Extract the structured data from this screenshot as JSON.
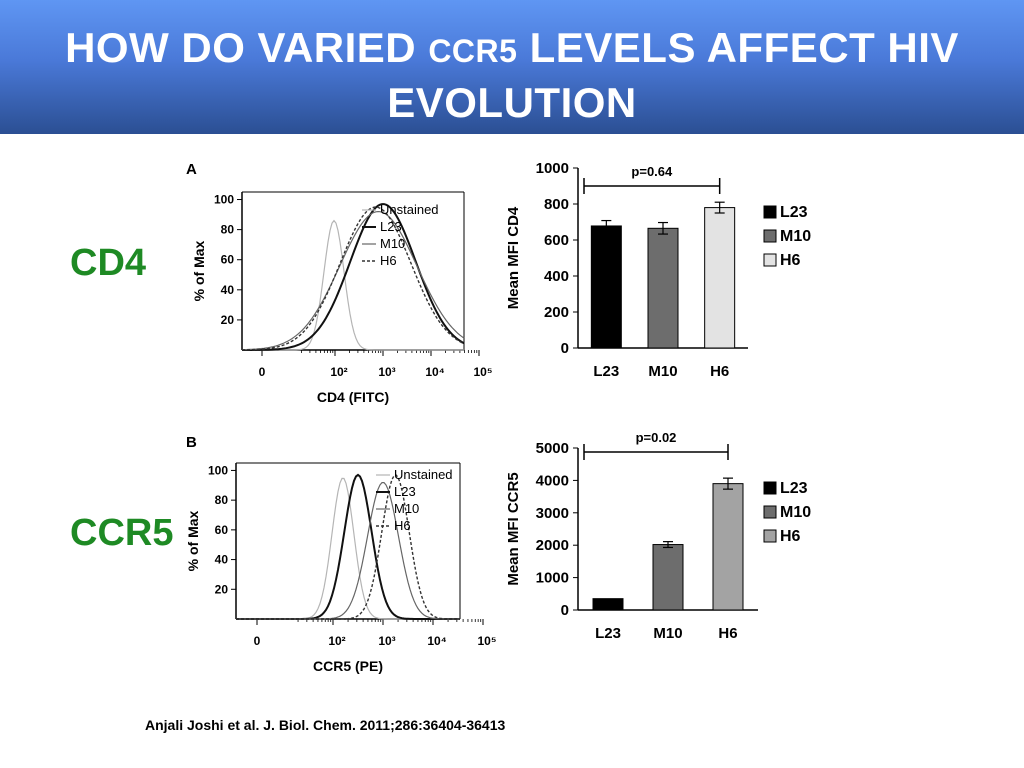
{
  "slide": {
    "title_a": "HOW DO VARIED ",
    "title_b": "CCR5",
    "title_c": " LEVELS AFFECT HIV",
    "title_d": "EVOLUTION",
    "label_cd4": "CD4",
    "label_ccr5": "CCR5",
    "citation": "Anjali Joshi et al. J. Biol. Chem. 2011;286:36404-36413",
    "title_color": "#ffffff",
    "side_label_color": "#1e8a24"
  },
  "chart_data": [
    {
      "type": "line",
      "panel": "A",
      "xlabel": "CD4 (FITC)",
      "ylabel": "% of Max",
      "x_ticks": [
        "0",
        "10²",
        "10³",
        "10⁴",
        "10⁵"
      ],
      "y_ticks": [
        20,
        40,
        60,
        80,
        100
      ],
      "ylim": [
        0,
        105
      ],
      "legend": [
        "Unstained",
        "L23",
        "M10",
        "H6"
      ],
      "legend_position": "top-right",
      "series": [
        {
          "name": "Unstained",
          "peak_x": 91,
          "peak_y": 86,
          "width": 22
        },
        {
          "name": "L23",
          "peak_x": 1000,
          "peak_y": 97,
          "width": 72
        },
        {
          "name": "M10",
          "peak_x": 800,
          "peak_y": 92,
          "width": 85
        },
        {
          "name": "H6",
          "peak_x": 700,
          "peak_y": 95,
          "width": 78
        }
      ]
    },
    {
      "type": "bar",
      "panel": "A",
      "ylabel": "Mean MFI CD4",
      "categories": [
        "L23",
        "M10",
        "H6"
      ],
      "values": [
        678,
        665,
        780
      ],
      "errors": [
        30,
        32,
        30
      ],
      "ylim": [
        0,
        1000
      ],
      "y_ticks": [
        0,
        200,
        400,
        600,
        800,
        1000
      ],
      "annotation": "p=0.64",
      "legend": [
        "L23",
        "M10",
        "H6"
      ],
      "legend_position": "right",
      "colors": [
        "#000000",
        "#6d6d6d",
        "#e3e3e3"
      ]
    },
    {
      "type": "line",
      "panel": "B",
      "xlabel": "CCR5 (PE)",
      "ylabel": "% of Max",
      "x_ticks": [
        "0",
        "10²",
        "10³",
        "10⁴",
        "10⁵"
      ],
      "y_ticks": [
        20,
        40,
        60,
        80,
        100
      ],
      "ylim": [
        0,
        105
      ],
      "legend": [
        "Unstained",
        "L23",
        "M10",
        "H6"
      ],
      "legend_position": "top-right",
      "series": [
        {
          "name": "Unstained",
          "peak_x": 158,
          "peak_y": 95,
          "width": 24
        },
        {
          "name": "L23",
          "peak_x": 316,
          "peak_y": 97,
          "width": 30
        },
        {
          "name": "M10",
          "peak_x": 1000,
          "peak_y": 92,
          "width": 34
        },
        {
          "name": "H6",
          "peak_x": 1778,
          "peak_y": 97,
          "width": 30
        }
      ]
    },
    {
      "type": "bar",
      "panel": "B",
      "ylabel": "Mean MFI CCR5",
      "categories": [
        "L23",
        "M10",
        "H6"
      ],
      "values": [
        350,
        2020,
        3900
      ],
      "errors": [
        0,
        90,
        170
      ],
      "ylim": [
        0,
        5000
      ],
      "y_ticks": [
        0,
        1000,
        2000,
        3000,
        4000,
        5000
      ],
      "annotation": "p=0.02",
      "legend": [
        "L23",
        "M10",
        "H6"
      ],
      "legend_position": "right",
      "colors": [
        "#000000",
        "#6d6d6d",
        "#a3a3a3"
      ]
    }
  ]
}
